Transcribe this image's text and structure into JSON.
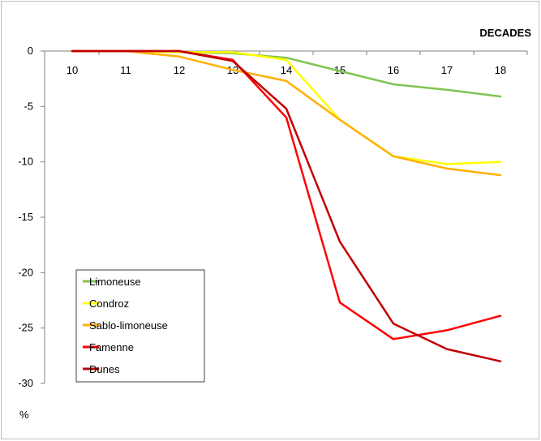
{
  "chart_data": {
    "type": "line",
    "title": "",
    "xlabel": "DECADES",
    "ylabel": "%",
    "x": [
      10,
      11,
      12,
      13,
      14,
      15,
      16,
      17,
      18
    ],
    "xticks": [
      "10",
      "11",
      "12",
      "13",
      "14",
      "15",
      "16",
      "17",
      "18"
    ],
    "yticks": [
      "0",
      "-5",
      "-10",
      "-15",
      "-20",
      "-25",
      "-30"
    ],
    "ylim": [
      -30,
      0
    ],
    "grid": false,
    "legend_position": "bottom-left",
    "series": [
      {
        "name": "Limoneuse",
        "color": "#80c451",
        "values": [
          0,
          0,
          -0.1,
          -0.2,
          -0.6,
          -1.8,
          -3.0,
          -3.5,
          -4.1
        ]
      },
      {
        "name": "Condroz",
        "color": "#ffff00",
        "values": [
          0,
          0,
          -0.1,
          -0.1,
          -0.8,
          -6.2,
          -9.5,
          -10.2,
          -10.0
        ]
      },
      {
        "name": "Sablo-limoneuse",
        "color": "#ffb000",
        "values": [
          0,
          0,
          -0.5,
          -1.7,
          -2.7,
          -6.2,
          -9.5,
          -10.6,
          -11.2
        ]
      },
      {
        "name": "Famenne",
        "color": "#ff0000",
        "values": [
          0,
          0,
          0,
          -0.8,
          -6.0,
          -22.7,
          -26.0,
          -25.2,
          -23.9
        ]
      },
      {
        "name": "Dunes",
        "color": "#c00000",
        "values": [
          0,
          0,
          0,
          -0.9,
          -5.2,
          -17.2,
          -24.6,
          -26.9,
          -28.0
        ]
      }
    ]
  }
}
